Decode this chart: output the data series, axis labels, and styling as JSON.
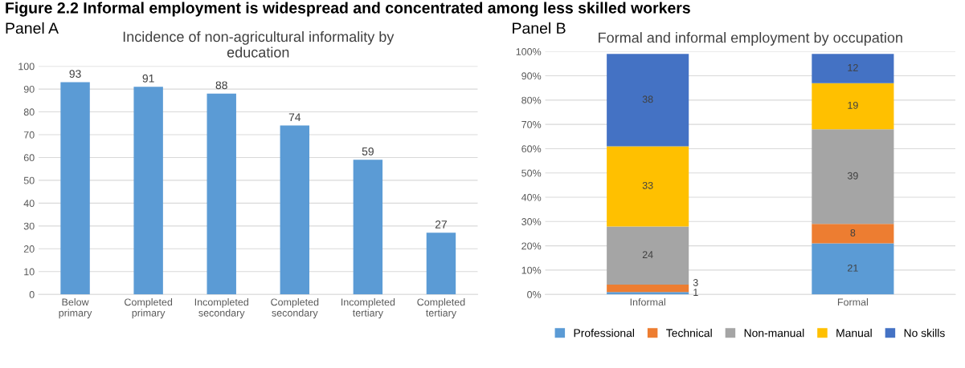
{
  "chart_data": [
    {
      "type": "bar",
      "title": "Incidence of non-agricultural informality by\neducation",
      "subtitle": "Panel A",
      "annotations": [
        "Figure 2.2 Informal employment is widespread and concentrated among less skilled workers"
      ],
      "categories": [
        "Below\nprimary",
        "Completed\nprimary",
        "Incompleted\nsecondary",
        "Completed\nsecondary",
        "Incompleted\ntertiary",
        "Completed\ntertiary"
      ],
      "values": [
        93,
        91,
        88,
        74,
        59,
        27
      ],
      "color": "#5b9bd5",
      "data_labels": true,
      "ylim": [
        0,
        100
      ],
      "yticks": [
        0,
        10,
        20,
        30,
        40,
        50,
        60,
        70,
        80,
        90,
        100
      ],
      "grid": "y"
    },
    {
      "type": "bar",
      "title": "Formal and informal employment by occupation",
      "subtitle": "Panel B",
      "stacked": true,
      "categories": [
        "Informal",
        "Formal"
      ],
      "series": [
        {
          "name": "Professional",
          "color": "#5b9bd5",
          "values": [
            1,
            21
          ]
        },
        {
          "name": "Technical",
          "color": "#ed7d31",
          "values": [
            3,
            8
          ]
        },
        {
          "name": "Non-manual",
          "color": "#a5a5a5",
          "values": [
            24,
            39
          ]
        },
        {
          "name": "Manual",
          "color": "#ffc000",
          "values": [
            33,
            19
          ]
        },
        {
          "name": "No skills",
          "color": "#4472c4",
          "values": [
            38,
            12
          ]
        }
      ],
      "data_labels": true,
      "legend": "bottom",
      "grid": "y",
      "ylim": [
        0,
        100
      ],
      "yticks": [
        {
          "value": 0,
          "label": "0%"
        },
        {
          "value": 10,
          "label": "10%"
        },
        {
          "value": 20,
          "label": "20%"
        },
        {
          "value": 30,
          "label": "30%"
        },
        {
          "value": 40,
          "label": "40%"
        },
        {
          "value": 50,
          "label": "50%"
        },
        {
          "value": 60,
          "label": "60%"
        },
        {
          "value": 70,
          "label": "70%"
        },
        {
          "value": 80,
          "label": "80%"
        },
        {
          "value": 90,
          "label": "90%"
        },
        {
          "value": 100,
          "label": "100%"
        }
      ]
    }
  ]
}
